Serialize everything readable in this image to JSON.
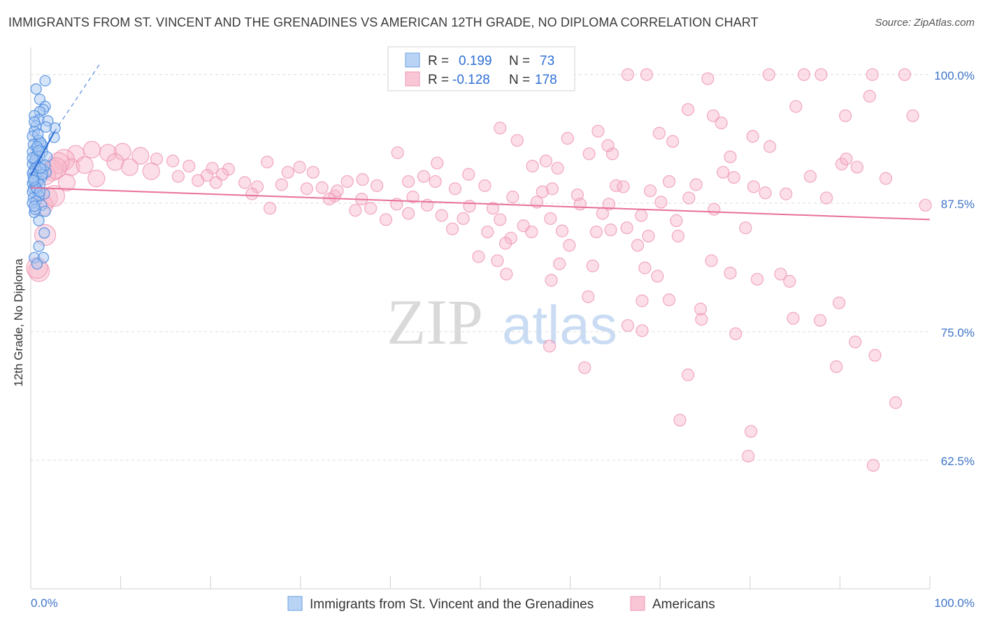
{
  "title": "IMMIGRANTS FROM ST. VINCENT AND THE GRENADINES VS AMERICAN 12TH GRADE, NO DIPLOMA CORRELATION CHART",
  "source": "Source: ZipAtlas.com",
  "watermark": {
    "zip": "ZIP",
    "atlas": "atlas"
  },
  "colors": {
    "blue_fill": "#a9c8f2",
    "blue_stroke": "#4f8ee0",
    "blue_line": "#2f6fd6",
    "pink_fill": "#f6b6ca",
    "pink_stroke": "#ee8fae",
    "pink_line": "#e8709a",
    "tick_text": "#3e74c9"
  },
  "legend": {
    "r_label": "R =",
    "n_label": "N =",
    "blue_r": "0.199",
    "blue_n": "73",
    "pink_r": "-0.128",
    "pink_n": "178"
  },
  "chart_data": {
    "type": "scatter",
    "xlabel": "",
    "ylabel": "12th Grade, No Diploma",
    "xlim": [
      0,
      100
    ],
    "ylim": [
      50,
      102.5
    ],
    "x_tick_labels": [
      "0.0%",
      "100.0%"
    ],
    "y_ticks": [
      {
        "value": 100,
        "label": "100.0%"
      },
      {
        "value": 87.5,
        "label": "87.5%"
      },
      {
        "value": 75,
        "label": "75.0%"
      },
      {
        "value": 62.5,
        "label": "62.5%"
      }
    ],
    "grid": "horizontal dashed",
    "legend_position": "top-center",
    "series": [
      {
        "name": "Immigrants from St. Vincent and the Grenadines",
        "color": "#4f8ee0",
        "trend": {
          "x": [
            0,
            2.6
          ],
          "y": [
            90.2,
            94.4
          ]
        },
        "trend_extension": {
          "x": [
            2.6,
            7.8
          ],
          "y": [
            94.4,
            101.2
          ]
        },
        "points": [
          [
            1.6,
            99.4
          ],
          [
            0.6,
            98.6
          ],
          [
            1.0,
            97.6
          ],
          [
            1.6,
            96.9
          ],
          [
            1.4,
            96.6
          ],
          [
            1.0,
            96.4
          ],
          [
            0.4,
            96.0
          ],
          [
            0.9,
            95.6
          ],
          [
            1.9,
            95.5
          ],
          [
            0.6,
            95.0
          ],
          [
            2.7,
            94.8
          ],
          [
            1.7,
            94.9
          ],
          [
            0.4,
            94.5
          ],
          [
            0.2,
            94.0
          ],
          [
            2.6,
            93.9
          ],
          [
            0.9,
            93.6
          ],
          [
            0.3,
            93.2
          ],
          [
            1.3,
            93.1
          ],
          [
            0.7,
            92.8
          ],
          [
            0.2,
            92.5
          ],
          [
            1.3,
            92.5
          ],
          [
            0.6,
            92.1
          ],
          [
            1.0,
            92.0
          ],
          [
            0.4,
            91.6
          ],
          [
            0.2,
            91.3
          ],
          [
            0.8,
            91.1
          ],
          [
            0.5,
            90.9
          ],
          [
            1.4,
            90.8
          ],
          [
            0.3,
            90.6
          ],
          [
            0.9,
            90.6
          ],
          [
            1.7,
            90.5
          ],
          [
            0.2,
            90.4
          ],
          [
            0.6,
            90.2
          ],
          [
            1.2,
            90.0
          ],
          [
            0.4,
            89.8
          ],
          [
            0.8,
            89.6
          ],
          [
            0.2,
            89.4
          ],
          [
            1.0,
            89.3
          ],
          [
            0.5,
            89.1
          ],
          [
            0.3,
            88.9
          ],
          [
            0.7,
            88.8
          ],
          [
            0.2,
            88.6
          ],
          [
            1.5,
            88.4
          ],
          [
            0.9,
            88.2
          ],
          [
            0.3,
            88.0
          ],
          [
            0.6,
            87.7
          ],
          [
            0.2,
            87.5
          ],
          [
            1.2,
            87.3
          ],
          [
            1.6,
            86.7
          ],
          [
            0.4,
            86.6
          ],
          [
            0.9,
            85.8
          ],
          [
            1.5,
            84.6
          ],
          [
            0.9,
            83.3
          ],
          [
            0.4,
            82.2
          ],
          [
            1.4,
            82.2
          ],
          [
            0.7,
            81.6
          ],
          [
            0.5,
            91.8
          ],
          [
            1.1,
            93.4
          ],
          [
            0.8,
            94.2
          ],
          [
            0.3,
            90.0
          ],
          [
            1.8,
            92.0
          ],
          [
            0.6,
            89.0
          ],
          [
            0.4,
            95.4
          ],
          [
            1.0,
            88.6
          ],
          [
            0.2,
            91.9
          ],
          [
            1.3,
            90.3
          ],
          [
            0.7,
            93.0
          ],
          [
            0.5,
            86.9
          ],
          [
            0.9,
            92.6
          ],
          [
            0.3,
            89.7
          ],
          [
            1.6,
            91.2
          ],
          [
            0.4,
            87.2
          ],
          [
            1.1,
            90.9
          ]
        ]
      },
      {
        "name": "Americans",
        "color": "#ee8fae",
        "trend": {
          "x": [
            0,
            100
          ],
          "y": [
            89.0,
            85.9
          ]
        },
        "points": [
          [
            66.4,
            100.0
          ],
          [
            68.5,
            100.0
          ],
          [
            82.1,
            100.0
          ],
          [
            86.0,
            100.0
          ],
          [
            87.9,
            100.0
          ],
          [
            93.6,
            100.0
          ],
          [
            97.2,
            100.0
          ],
          [
            75.3,
            99.6
          ],
          [
            93.3,
            97.9
          ],
          [
            85.1,
            96.9
          ],
          [
            73.1,
            96.6
          ],
          [
            90.6,
            96.0
          ],
          [
            75.9,
            96.0
          ],
          [
            98.1,
            96.0
          ],
          [
            76.8,
            95.3
          ],
          [
            52.2,
            94.8
          ],
          [
            63.1,
            94.5
          ],
          [
            69.9,
            94.3
          ],
          [
            59.7,
            93.8
          ],
          [
            71.4,
            93.5
          ],
          [
            54.1,
            93.6
          ],
          [
            80.3,
            94.0
          ],
          [
            82.2,
            93.0
          ],
          [
            64.7,
            92.3
          ],
          [
            62.1,
            92.3
          ],
          [
            77.8,
            92.0
          ],
          [
            57.3,
            91.6
          ],
          [
            90.2,
            91.3
          ],
          [
            90.7,
            91.8
          ],
          [
            55.8,
            91.1
          ],
          [
            77.0,
            90.5
          ],
          [
            31.4,
            90.5
          ],
          [
            35.2,
            89.6
          ],
          [
            42.0,
            89.6
          ],
          [
            45.0,
            89.6
          ],
          [
            65.1,
            89.2
          ],
          [
            71.0,
            89.6
          ],
          [
            74.0,
            89.3
          ],
          [
            80.4,
            89.1
          ],
          [
            38.5,
            89.2
          ],
          [
            50.5,
            89.2
          ],
          [
            58.0,
            88.9
          ],
          [
            47.2,
            88.9
          ],
          [
            68.9,
            88.7
          ],
          [
            60.8,
            88.3
          ],
          [
            53.6,
            88.1
          ],
          [
            42.5,
            88.1
          ],
          [
            33.8,
            88.2
          ],
          [
            36.8,
            87.9
          ],
          [
            56.3,
            87.6
          ],
          [
            61.1,
            87.4
          ],
          [
            64.3,
            87.4
          ],
          [
            70.1,
            87.6
          ],
          [
            40.7,
            87.4
          ],
          [
            44.1,
            87.3
          ],
          [
            48.8,
            87.2
          ],
          [
            37.8,
            87.0
          ],
          [
            51.4,
            87.0
          ],
          [
            36.1,
            86.8
          ],
          [
            42.0,
            86.5
          ],
          [
            45.7,
            86.3
          ],
          [
            48.1,
            86.0
          ],
          [
            39.5,
            85.9
          ],
          [
            52.2,
            85.9
          ],
          [
            57.8,
            86.0
          ],
          [
            63.6,
            86.5
          ],
          [
            67.9,
            86.3
          ],
          [
            71.8,
            85.8
          ],
          [
            54.8,
            85.3
          ],
          [
            46.9,
            85.0
          ],
          [
            50.8,
            84.7
          ],
          [
            62.9,
            84.7
          ],
          [
            68.7,
            84.3
          ],
          [
            72.0,
            84.3
          ],
          [
            66.3,
            85.1
          ],
          [
            76.0,
            86.9
          ],
          [
            79.5,
            85.1
          ],
          [
            59.1,
            84.8
          ],
          [
            64.5,
            84.9
          ],
          [
            53.4,
            84.1
          ],
          [
            55.7,
            84.7
          ],
          [
            52.8,
            83.6
          ],
          [
            59.9,
            83.4
          ],
          [
            67.5,
            83.4
          ],
          [
            49.8,
            82.3
          ],
          [
            51.9,
            81.9
          ],
          [
            75.7,
            81.9
          ],
          [
            58.8,
            81.6
          ],
          [
            62.5,
            81.4
          ],
          [
            68.3,
            81.2
          ],
          [
            69.7,
            80.4
          ],
          [
            77.8,
            80.7
          ],
          [
            52.9,
            80.6
          ],
          [
            57.9,
            80.0
          ],
          [
            62.0,
            78.4
          ],
          [
            68.0,
            78.0
          ],
          [
            71.0,
            78.1
          ],
          [
            74.5,
            77.2
          ],
          [
            80.8,
            80.1
          ],
          [
            83.4,
            80.6
          ],
          [
            74.6,
            76.2
          ],
          [
            87.8,
            76.1
          ],
          [
            78.4,
            74.8
          ],
          [
            66.4,
            75.6
          ],
          [
            84.8,
            76.3
          ],
          [
            91.7,
            74.0
          ],
          [
            57.7,
            73.6
          ],
          [
            61.6,
            71.5
          ],
          [
            73.1,
            70.8
          ],
          [
            89.6,
            71.6
          ],
          [
            96.2,
            68.1
          ],
          [
            72.2,
            66.4
          ],
          [
            80.1,
            65.3
          ],
          [
            93.7,
            62.0
          ],
          [
            79.8,
            62.9
          ],
          [
            68.0,
            75.1
          ],
          [
            84.4,
            79.9
          ],
          [
            89.9,
            77.8
          ],
          [
            93.9,
            72.7
          ],
          [
            64.2,
            93.1
          ],
          [
            58.6,
            90.9
          ],
          [
            40.8,
            92.4
          ],
          [
            45.2,
            91.4
          ],
          [
            48.7,
            90.3
          ],
          [
            26.3,
            91.5
          ],
          [
            29.9,
            91.0
          ],
          [
            22.0,
            90.8
          ],
          [
            20.2,
            90.9
          ],
          [
            21.3,
            90.3
          ],
          [
            19.6,
            90.2
          ],
          [
            17.6,
            91.1
          ],
          [
            15.8,
            91.6
          ],
          [
            14.0,
            91.8
          ],
          [
            12.2,
            92.1
          ],
          [
            10.2,
            92.5
          ],
          [
            8.6,
            92.4
          ],
          [
            6.8,
            92.7
          ],
          [
            5.0,
            92.3
          ],
          [
            3.7,
            91.7
          ],
          [
            4.5,
            91.0
          ],
          [
            2.4,
            90.7
          ],
          [
            1.6,
            90.3
          ],
          [
            3.1,
            91.4
          ],
          [
            2.8,
            90.9
          ],
          [
            6.0,
            91.2
          ],
          [
            9.4,
            91.5
          ],
          [
            11.0,
            91.0
          ],
          [
            13.4,
            90.6
          ],
          [
            16.4,
            90.1
          ],
          [
            18.6,
            89.7
          ],
          [
            23.8,
            89.5
          ],
          [
            25.2,
            89.1
          ],
          [
            27.9,
            89.3
          ],
          [
            30.7,
            88.9
          ],
          [
            32.4,
            89.0
          ],
          [
            34.1,
            88.7
          ],
          [
            1.8,
            88.0
          ],
          [
            1.3,
            87.3
          ],
          [
            1.6,
            84.4
          ],
          [
            0.9,
            80.9
          ],
          [
            0.7,
            81.2
          ],
          [
            2.6,
            88.2
          ],
          [
            4.0,
            89.5
          ],
          [
            7.3,
            89.9
          ],
          [
            28.6,
            90.5
          ],
          [
            24.6,
            88.4
          ],
          [
            33.2,
            87.9
          ],
          [
            26.6,
            87.0
          ],
          [
            20.6,
            89.5
          ],
          [
            36.9,
            89.8
          ],
          [
            43.7,
            90.1
          ],
          [
            56.9,
            88.6
          ],
          [
            65.9,
            89.1
          ],
          [
            73.2,
            88.0
          ],
          [
            78.2,
            90.0
          ],
          [
            81.7,
            88.5
          ],
          [
            86.7,
            90.1
          ],
          [
            91.9,
            91.0
          ],
          [
            95.1,
            89.9
          ],
          [
            99.5,
            87.3
          ],
          [
            88.5,
            88.0
          ],
          [
            84.0,
            88.4
          ]
        ]
      }
    ]
  },
  "bottom_legend": {
    "blue_label": "Immigrants from St. Vincent and the Grenadines",
    "pink_label": "Americans"
  }
}
